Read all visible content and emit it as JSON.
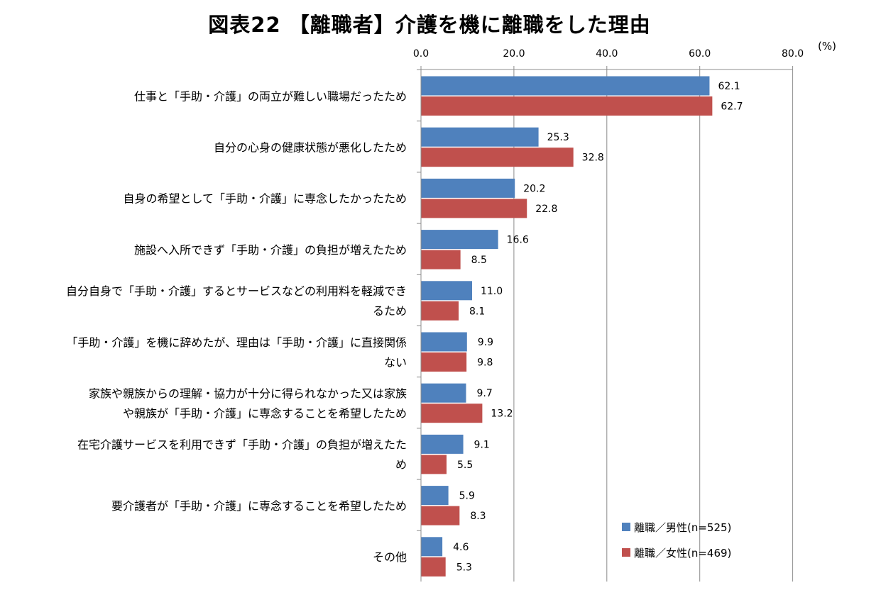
{
  "chart_data": {
    "type": "bar",
    "orientation": "horizontal",
    "title": "図表22 【離職者】介護を機に離職をした理由",
    "unit": "(%)",
    "xlim": [
      0,
      80
    ],
    "ticks": [
      "0.0",
      "20.0",
      "40.0",
      "60.0",
      "80.0"
    ],
    "grid": true,
    "legend_position": "bottom-right",
    "categories": [
      [
        "仕事と「手助・介護」の両立が難しい職場だったため"
      ],
      [
        "自分の心身の健康状態が悪化したため"
      ],
      [
        "自身の希望として「手助・介護」に専念したかったため"
      ],
      [
        "施設へ入所できず「手助・介護」の負担が増えたため"
      ],
      [
        "自分自身で「手助・介護」するとサービスなどの利用料を軽減でき",
        "るため"
      ],
      [
        "「手助・介護」を機に辞めたが、理由は「手助・介護」に直接関係",
        "ない"
      ],
      [
        "家族や親族からの理解・協力が十分に得られなかった又は家族",
        "や親族が「手助・介護」に専念することを希望したため"
      ],
      [
        "在宅介護サービスを利用できず「手助・介護」の負担が増えたた",
        "め"
      ],
      [
        "要介護者が「手助・介護」に専念することを希望したため"
      ],
      [
        "その他"
      ]
    ],
    "series": [
      {
        "name": "離職／男性(n=525)",
        "color": "#4F81BD",
        "values": [
          62.1,
          25.3,
          20.2,
          16.6,
          11.0,
          9.9,
          9.7,
          9.1,
          5.9,
          4.6
        ],
        "labels": [
          "62.1",
          "25.3",
          "20.2",
          "16.6",
          "11.0",
          "9.9",
          "9.7",
          "9.1",
          "5.9",
          "4.6"
        ]
      },
      {
        "name": "離職／女性(n=469)",
        "color": "#C0504D",
        "values": [
          62.7,
          32.8,
          22.8,
          8.5,
          8.1,
          9.8,
          13.2,
          5.5,
          8.3,
          5.3
        ],
        "labels": [
          "62.7",
          "32.8",
          "22.8",
          "8.5",
          "8.1",
          "9.8",
          "13.2",
          "5.5",
          "8.3",
          "5.3"
        ]
      }
    ]
  }
}
